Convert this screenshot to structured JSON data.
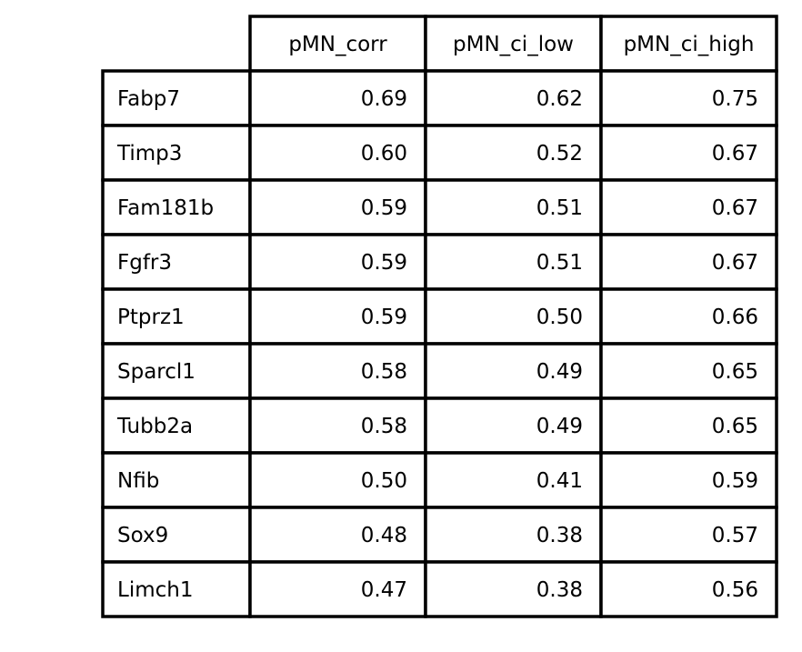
{
  "chart_data": {
    "type": "table",
    "title": "",
    "columns": [
      "pMN_corr",
      "pMN_ci_low",
      "pMN_ci_high"
    ],
    "rows": [
      {
        "label": "Fabp7",
        "values": [
          "0.69",
          "0.62",
          "0.75"
        ]
      },
      {
        "label": "Timp3",
        "values": [
          "0.60",
          "0.52",
          "0.67"
        ]
      },
      {
        "label": "Fam181b",
        "values": [
          "0.59",
          "0.51",
          "0.67"
        ]
      },
      {
        "label": "Fgfr3",
        "values": [
          "0.59",
          "0.51",
          "0.67"
        ]
      },
      {
        "label": "Ptprz1",
        "values": [
          "0.59",
          "0.50",
          "0.66"
        ]
      },
      {
        "label": "Sparcl1",
        "values": [
          "0.58",
          "0.49",
          "0.65"
        ]
      },
      {
        "label": "Tubb2a",
        "values": [
          "0.58",
          "0.49",
          "0.65"
        ]
      },
      {
        "label": "Nfib",
        "values": [
          "0.50",
          "0.41",
          "0.59"
        ]
      },
      {
        "label": "Sox9",
        "values": [
          "0.48",
          "0.38",
          "0.57"
        ]
      },
      {
        "label": "Limch1",
        "values": [
          "0.47",
          "0.38",
          "0.56"
        ]
      }
    ],
    "colors": {
      "border": "#000000",
      "background": "#ffffff",
      "text": "#000000"
    }
  }
}
